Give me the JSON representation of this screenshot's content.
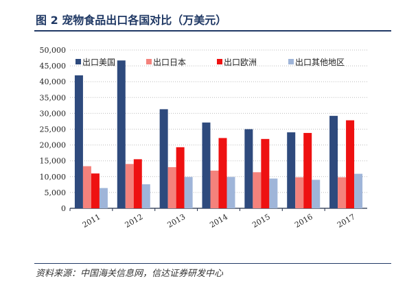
{
  "chart_data": {
    "type": "bar",
    "title": "图 2 宠物食品出口各国对比（万美元）",
    "source": "资料来源：中国海关信息网，信达证券研发中心",
    "categories": [
      "2011",
      "2012",
      "2013",
      "2014",
      "2015",
      "2016",
      "2017"
    ],
    "ylim": [
      0,
      50000
    ],
    "yticks": [
      "0",
      "5,000",
      "10,000",
      "15,000",
      "20,000",
      "25,000",
      "30,000",
      "35,000",
      "40,000",
      "45,000",
      "50,000"
    ],
    "grid": true,
    "legend": "top",
    "series": [
      {
        "name": "出口美国",
        "color": "#2e4a7d",
        "values": [
          42000,
          46700,
          31300,
          27100,
          25000,
          24000,
          29200
        ]
      },
      {
        "name": "出口日本",
        "color": "#f4827c",
        "values": [
          13300,
          14000,
          13000,
          11900,
          11400,
          9800,
          9800
        ]
      },
      {
        "name": "出口欧洲",
        "color": "#ee1111",
        "values": [
          11000,
          15500,
          19300,
          22200,
          21900,
          23800,
          27800
        ]
      },
      {
        "name": "出口其他地区",
        "color": "#9fb5d9",
        "values": [
          6400,
          7600,
          9900,
          9900,
          9400,
          9000,
          10900
        ]
      }
    ]
  }
}
